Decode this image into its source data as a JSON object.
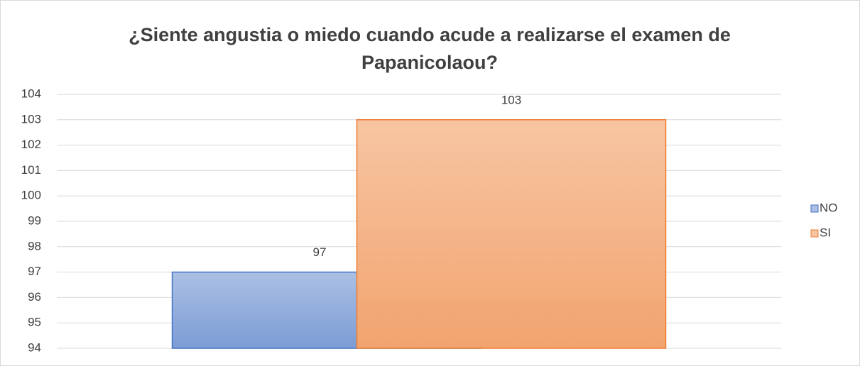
{
  "chart_data": {
    "type": "bar",
    "title": "¿Siente angustia o miedo cuando acude a realizarse el examen de Papanicolaou?",
    "categories": [
      null
    ],
    "series": [
      {
        "name": "NO",
        "color": "#4472c4",
        "values": [
          97
        ]
      },
      {
        "name": "SI",
        "color": "#ed7d31",
        "values": [
          103
        ]
      }
    ],
    "ylim": [
      94,
      104
    ],
    "yticks": [
      94,
      95,
      96,
      97,
      98,
      99,
      100,
      101,
      102,
      103,
      104
    ],
    "grid": true,
    "legend": "right"
  }
}
